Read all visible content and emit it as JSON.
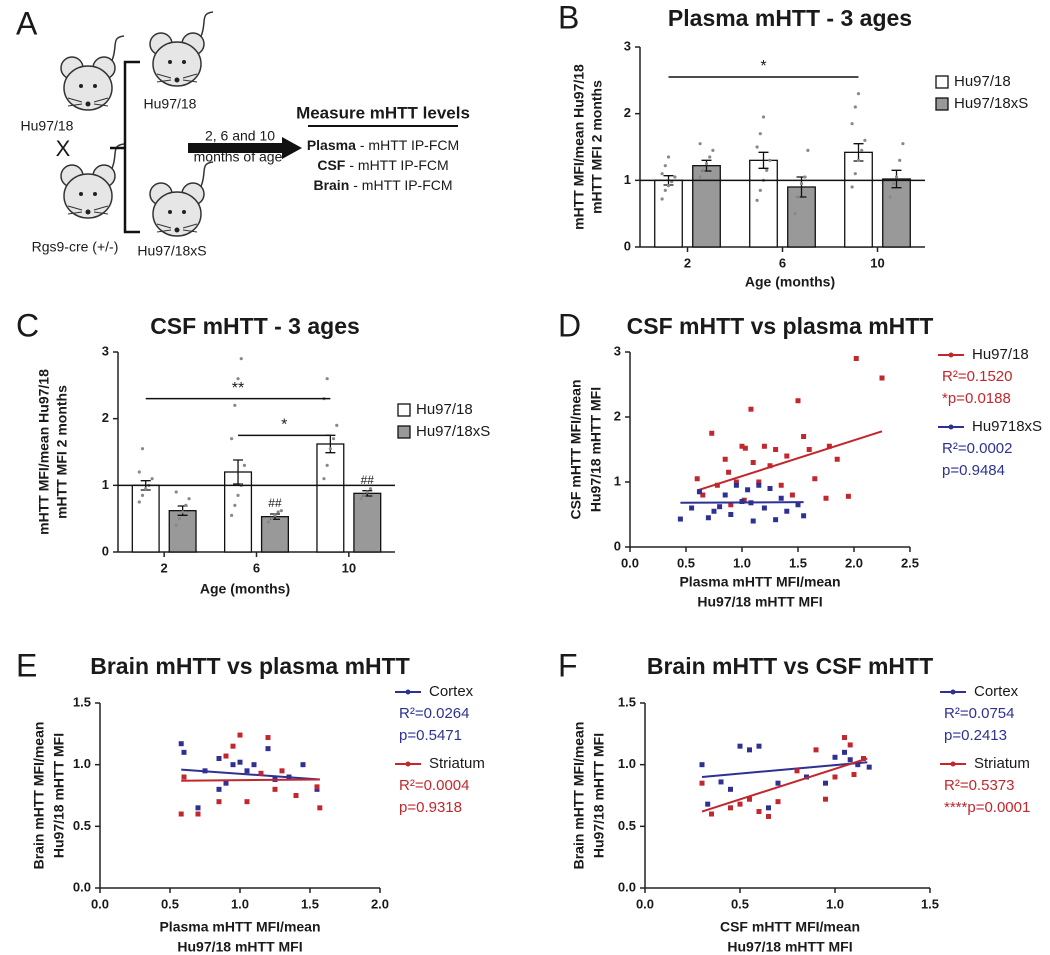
{
  "figure": {
    "panel_labels": [
      "A",
      "B",
      "C",
      "D",
      "E",
      "F"
    ]
  },
  "diagram": {
    "parent_1": "Hu97/18",
    "cross": "X",
    "parent_2": "Rgs9-cre (+/-)",
    "offspring_1": "Hu97/18",
    "offspring_2": "Hu97/18xS",
    "timing": [
      "2, 6 and 10",
      "months of age"
    ],
    "heading": "Measure mHTT levels",
    "measures": [
      {
        "tissue": "Plasma",
        "method": "- mHTT IP-FCM"
      },
      {
        "tissue": "CSF",
        "method": "- mHTT IP-FCM"
      },
      {
        "tissue": "Brain",
        "method": "- mHTT IP-FCM"
      }
    ]
  },
  "chart_data": [
    {
      "type": "bar",
      "title": "Plasma mHTT - 3 ages",
      "xlabel": [
        "Age (months)"
      ],
      "ylabel": [
        "mHTT MFI/mean Hu97/18",
        "mHTT MFI 2 months"
      ],
      "categories": [
        "2",
        "6",
        "10"
      ],
      "ylim": [
        0,
        3
      ],
      "yticks": [
        0,
        1,
        2,
        3
      ],
      "reference_line": 1,
      "series": [
        {
          "name": "Hu97/18",
          "color": "#ffffff",
          "values": [
            1.0,
            1.3,
            1.42
          ],
          "errors": [
            0.07,
            0.12,
            0.13
          ],
          "points": [
            [
              0.72,
              0.85,
              0.92,
              0.98,
              1.05,
              1.1,
              1.22,
              1.35
            ],
            [
              0.7,
              0.85,
              1.0,
              1.15,
              1.3,
              1.5,
              1.7,
              1.95
            ],
            [
              0.9,
              1.1,
              1.3,
              1.45,
              1.6,
              1.85,
              2.1,
              2.3
            ]
          ]
        },
        {
          "name": "Hu97/18xS",
          "color": "#999999",
          "values": [
            1.22,
            0.9,
            1.02
          ],
          "errors": [
            0.08,
            0.15,
            0.13
          ],
          "points": [
            [
              1.05,
              1.15,
              1.25,
              1.35,
              1.45,
              1.55
            ],
            [
              0.5,
              0.75,
              0.95,
              1.05,
              1.45
            ],
            [
              0.75,
              0.95,
              1.05,
              1.3,
              1.55
            ]
          ]
        }
      ],
      "significance": [
        {
          "label": "*",
          "y": 2.55
        }
      ]
    },
    {
      "type": "bar",
      "title": "CSF mHTT - 3 ages",
      "xlabel": [
        "Age (months)"
      ],
      "ylabel": [
        "mHTT MFI/mean Hu97/18",
        "mHTT MFI 2 months"
      ],
      "categories": [
        "2",
        "6",
        "10"
      ],
      "ylim": [
        0,
        3
      ],
      "yticks": [
        0,
        1,
        2,
        3
      ],
      "reference_line": 1,
      "series": [
        {
          "name": "Hu97/18",
          "color": "#ffffff",
          "values": [
            1.0,
            1.2,
            1.62
          ],
          "errors": [
            0.07,
            0.18,
            0.13
          ],
          "points": [
            [
              0.75,
              0.85,
              0.95,
              1.0,
              1.1,
              1.2,
              1.55
            ],
            [
              0.55,
              0.7,
              0.85,
              1.0,
              1.3,
              1.7,
              2.2,
              2.6,
              2.9
            ],
            [
              1.1,
              1.3,
              1.55,
              1.7,
              1.9,
              2.3,
              2.6
            ]
          ]
        },
        {
          "name": "Hu97/18xS",
          "color": "#999999",
          "values": [
            0.62,
            0.53,
            0.88
          ],
          "errors": [
            0.07,
            0.04,
            0.04
          ],
          "value_notes": [
            null,
            "##",
            "##"
          ],
          "points": [
            [
              0.4,
              0.5,
              0.6,
              0.7,
              0.8,
              0.9
            ],
            [
              0.45,
              0.5,
              0.55,
              0.6,
              0.62
            ],
            [
              0.8,
              0.85,
              0.9,
              0.95
            ]
          ]
        }
      ],
      "significance": [
        {
          "label": "**",
          "y": 2.3
        },
        {
          "label": "*",
          "y": 1.75
        }
      ]
    },
    {
      "type": "scatter",
      "title": "CSF mHTT vs plasma mHTT",
      "xlabel": [
        "Plasma mHTT MFI/mean",
        "Hu97/18 mHTT MFI"
      ],
      "ylabel": [
        "CSF mHTT MFI/mean",
        "Hu97/18 mHTT MFI"
      ],
      "xlim": [
        0,
        2.5
      ],
      "xticks": [
        {
          "value": 0,
          "label": "0.0"
        },
        0.5,
        {
          "value": 1,
          "label": "1.0"
        },
        1.5,
        {
          "value": 2,
          "label": "2.0"
        },
        2.5
      ],
      "ylim": [
        0,
        3
      ],
      "yticks": [
        0,
        1,
        2,
        3
      ],
      "legend": "right",
      "series": [
        {
          "name": "Hu97/18",
          "color": "#c1272d",
          "stats": [
            "R²=0.1520",
            "*p=0.0188"
          ],
          "x": [
            0.6,
            0.65,
            0.73,
            0.78,
            0.85,
            0.9,
            0.95,
            1.0,
            1.03,
            1.08,
            1.1,
            1.15,
            1.2,
            1.25,
            1.3,
            1.35,
            1.4,
            1.5,
            1.55,
            1.6,
            1.65,
            1.75,
            1.78,
            1.85,
            1.95,
            2.02,
            2.25,
            1.45,
            1.02,
            0.88
          ],
          "values": [
            1.05,
            0.8,
            1.75,
            0.95,
            1.35,
            0.65,
            1.0,
            1.55,
            1.52,
            2.12,
            1.3,
            1.0,
            1.55,
            1.25,
            1.5,
            0.95,
            1.4,
            2.25,
            1.7,
            1.5,
            1.05,
            0.75,
            1.55,
            1.35,
            0.78,
            2.9,
            2.6,
            0.8,
            0.72,
            1.15
          ],
          "fit": {
            "x": [
              0.6,
              2.25
            ],
            "values": [
              0.87,
              1.78
            ]
          }
        },
        {
          "name": "Hu9718xS",
          "color": "#2e3192",
          "stats": [
            "R²=0.0002",
            "p=0.9484"
          ],
          "x": [
            0.45,
            0.55,
            0.62,
            0.7,
            0.8,
            0.85,
            0.9,
            0.95,
            1.0,
            1.05,
            1.1,
            1.15,
            1.2,
            1.25,
            1.3,
            1.35,
            1.4,
            1.5,
            1.55,
            0.75,
            1.08
          ],
          "values": [
            0.43,
            0.6,
            0.85,
            0.45,
            0.62,
            0.8,
            0.5,
            0.95,
            0.7,
            0.88,
            0.4,
            0.95,
            0.6,
            0.9,
            0.42,
            0.75,
            0.55,
            0.65,
            0.48,
            0.55,
            0.68
          ],
          "fit": {
            "x": [
              0.45,
              1.55
            ],
            "values": [
              0.68,
              0.69
            ]
          }
        }
      ]
    },
    {
      "type": "scatter",
      "title": "Brain mHTT vs plasma mHTT",
      "xlabel": [
        "Plasma mHTT MFI/mean",
        "Hu97/18 mHTT MFI"
      ],
      "ylabel": [
        "Brain mHTT  MFI/mean",
        "Hu97/18 mHTT MFI"
      ],
      "xlim": [
        0,
        2
      ],
      "xticks": [
        {
          "value": 0,
          "label": "0.0"
        },
        0.5,
        {
          "value": 1,
          "label": "1.0"
        },
        1.5,
        {
          "value": 2,
          "label": "2.0"
        }
      ],
      "ylim": [
        0,
        1.5
      ],
      "yticks": [
        {
          "value": 0,
          "label": "0.0"
        },
        0.5,
        {
          "value": 1,
          "label": "1.0"
        },
        1.5
      ],
      "legend": "right",
      "series": [
        {
          "name": "Cortex",
          "color": "#2e3192",
          "stats": [
            "R²=0.0264",
            "p=0.5471"
          ],
          "x": [
            0.58,
            0.6,
            0.7,
            0.75,
            0.85,
            0.9,
            0.95,
            1.0,
            1.05,
            1.1,
            1.2,
            1.25,
            1.35,
            1.45,
            1.55,
            0.85
          ],
          "values": [
            1.17,
            1.1,
            0.65,
            0.95,
            1.05,
            0.85,
            1.0,
            1.02,
            0.95,
            1.0,
            1.13,
            0.88,
            0.9,
            1.0,
            0.8,
            0.8
          ],
          "fit": {
            "x": [
              0.58,
              1.57
            ],
            "values": [
              0.96,
              0.88
            ]
          }
        },
        {
          "name": "Striatum",
          "color": "#c1272d",
          "stats": [
            "R²=0.0004",
            "p=0.9318"
          ],
          "x": [
            0.58,
            0.6,
            0.7,
            0.85,
            0.9,
            0.95,
            1.0,
            1.05,
            1.15,
            1.2,
            1.25,
            1.3,
            1.4,
            1.57,
            1.55
          ],
          "values": [
            0.6,
            0.9,
            0.6,
            0.7,
            1.07,
            1.15,
            1.24,
            0.7,
            0.93,
            1.22,
            0.8,
            0.95,
            0.75,
            0.65,
            0.82
          ],
          "fit": {
            "x": [
              0.58,
              1.57
            ],
            "values": [
              0.87,
              0.88
            ]
          }
        }
      ]
    },
    {
      "type": "scatter",
      "title": "Brain mHTT vs CSF mHTT",
      "xlabel": [
        "CSF mHTT MFI/mean",
        "Hu97/18 mHTT MFI"
      ],
      "ylabel": [
        "Brain mHTT  MFI/mean",
        "Hu97/18 mHTT MFI"
      ],
      "xlim": [
        0,
        1.5
      ],
      "xticks": [
        {
          "value": 0,
          "label": "0.0"
        },
        0.5,
        {
          "value": 1,
          "label": "1.0"
        },
        1.5
      ],
      "ylim": [
        0,
        1.5
      ],
      "yticks": [
        {
          "value": 0,
          "label": "0.0"
        },
        0.5,
        {
          "value": 1,
          "label": "1.0"
        },
        1.5
      ],
      "legend": "right",
      "series": [
        {
          "name": "Cortex",
          "color": "#2e3192",
          "stats": [
            "R²=0.0754",
            "p=0.2413"
          ],
          "x": [
            0.3,
            0.33,
            0.4,
            0.45,
            0.5,
            0.55,
            0.6,
            0.65,
            0.85,
            0.95,
            1.0,
            1.05,
            1.08,
            1.12,
            1.18,
            0.7
          ],
          "values": [
            1.0,
            0.68,
            0.86,
            0.8,
            1.15,
            1.12,
            1.15,
            0.65,
            0.9,
            0.85,
            1.06,
            1.1,
            1.04,
            1.0,
            0.98,
            0.85
          ],
          "fit": {
            "x": [
              0.3,
              1.17
            ],
            "values": [
              0.9,
              1.02
            ]
          }
        },
        {
          "name": "Striatum",
          "color": "#c1272d",
          "stats": [
            "R²=0.5373",
            "****p=0.0001"
          ],
          "x": [
            0.3,
            0.35,
            0.45,
            0.5,
            0.55,
            0.6,
            0.65,
            0.7,
            0.8,
            0.9,
            0.95,
            1.0,
            1.05,
            1.08,
            1.1,
            1.15
          ],
          "values": [
            0.85,
            0.6,
            0.65,
            0.68,
            0.72,
            0.62,
            0.58,
            0.7,
            0.95,
            1.12,
            0.72,
            0.9,
            1.22,
            1.16,
            0.92,
            1.05
          ],
          "fit": {
            "x": [
              0.3,
              1.17
            ],
            "values": [
              0.62,
              1.05
            ]
          }
        }
      ]
    }
  ]
}
